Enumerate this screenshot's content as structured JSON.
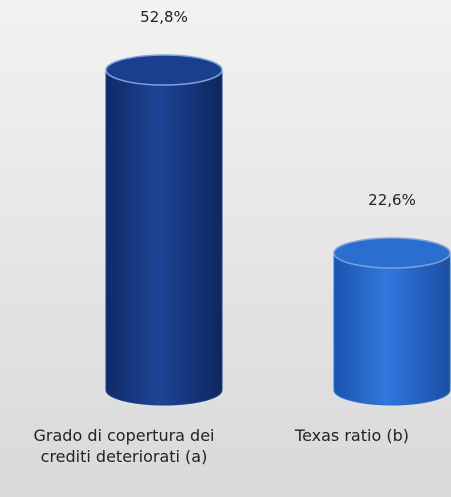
{
  "chart_data": {
    "type": "bar",
    "categories": [
      "Grado di copertura dei crediti deteriorati (a)",
      "Texas ratio (b)"
    ],
    "values": [
      52.8,
      22.6
    ],
    "value_labels": [
      "52,8%",
      "22,6%"
    ],
    "colors": [
      "#1b3f8f",
      "#2a6fd0"
    ]
  }
}
